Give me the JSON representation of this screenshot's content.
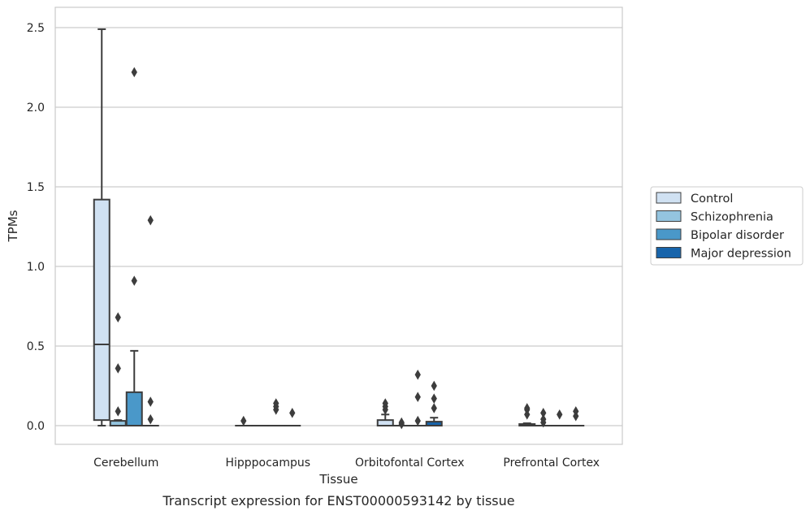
{
  "chart_data": {
    "type": "box",
    "title": "",
    "caption": "Transcript expression for ENST00000593142 by tissue",
    "xlabel": "Tissue",
    "ylabel": "TPMs",
    "ylim": [
      -0.12,
      2.62
    ],
    "yticks": [
      0.0,
      0.5,
      1.0,
      1.5,
      2.0,
      2.5
    ],
    "ytick_labels": [
      "0.0",
      "0.5",
      "1.0",
      "1.5",
      "2.0",
      "2.5"
    ],
    "grid": "horizontal",
    "legend_position": "right",
    "categories": [
      "Cerebellum",
      "Hipppocampus",
      "Orbitofontal Cortex",
      "Prefrontal Cortex"
    ],
    "series": [
      {
        "name": "Control",
        "color": "#d0e1f2",
        "boxes": [
          {
            "q1": 0.035,
            "median": 0.51,
            "q3": 1.42,
            "whisker_low": 0.0,
            "whisker_high": 2.49,
            "outliers": []
          },
          {
            "q1": 0.0,
            "median": 0.0,
            "q3": 0.0,
            "whisker_low": 0.0,
            "whisker_high": 0.0,
            "outliers": [
              0.03
            ]
          },
          {
            "q1": 0.0,
            "median": 0.0,
            "q3": 0.035,
            "whisker_low": 0.0,
            "whisker_high": 0.07,
            "outliers": [
              0.1,
              0.12,
              0.14
            ]
          },
          {
            "q1": 0.0,
            "median": 0.0,
            "q3": 0.01,
            "whisker_low": 0.0,
            "whisker_high": 0.015,
            "outliers": [
              0.07,
              0.1,
              0.11
            ]
          }
        ]
      },
      {
        "name": "Schizophrenia",
        "color": "#94c4df",
        "boxes": [
          {
            "q1": 0.0,
            "median": 0.0,
            "q3": 0.03,
            "whisker_low": 0.0,
            "whisker_high": 0.035,
            "outliers": [
              0.09,
              0.36,
              0.68
            ]
          },
          {
            "q1": 0.0,
            "median": 0.0,
            "q3": 0.0,
            "whisker_low": 0.0,
            "whisker_high": 0.0,
            "outliers": []
          },
          {
            "q1": 0.0,
            "median": 0.0,
            "q3": 0.0,
            "whisker_low": 0.0,
            "whisker_high": 0.0,
            "outliers": [
              0.01,
              0.02
            ]
          },
          {
            "q1": 0.0,
            "median": 0.0,
            "q3": 0.0,
            "whisker_low": 0.0,
            "whisker_high": 0.0,
            "outliers": [
              0.02,
              0.04,
              0.08
            ]
          }
        ]
      },
      {
        "name": "Bipolar disorder",
        "color": "#4a98c9",
        "boxes": [
          {
            "q1": 0.0,
            "median": 0.0,
            "q3": 0.21,
            "whisker_low": 0.0,
            "whisker_high": 0.47,
            "outliers": [
              0.91,
              2.22
            ]
          },
          {
            "q1": 0.0,
            "median": 0.0,
            "q3": 0.0,
            "whisker_low": 0.0,
            "whisker_high": 0.0,
            "outliers": [
              0.1,
              0.12,
              0.14
            ]
          },
          {
            "q1": 0.0,
            "median": 0.0,
            "q3": 0.0,
            "whisker_low": 0.0,
            "whisker_high": 0.0,
            "outliers": [
              0.03,
              0.18,
              0.32
            ]
          },
          {
            "q1": 0.0,
            "median": 0.0,
            "q3": 0.0,
            "whisker_low": 0.0,
            "whisker_high": 0.0,
            "outliers": [
              0.07
            ]
          }
        ]
      },
      {
        "name": "Major depression",
        "color": "#1764ab",
        "boxes": [
          {
            "q1": 0.0,
            "median": 0.0,
            "q3": 0.0,
            "whisker_low": 0.0,
            "whisker_high": 0.0,
            "outliers": [
              0.04,
              0.15,
              1.29
            ]
          },
          {
            "q1": 0.0,
            "median": 0.0,
            "q3": 0.0,
            "whisker_low": 0.0,
            "whisker_high": 0.0,
            "outliers": [
              0.08
            ]
          },
          {
            "q1": 0.0,
            "median": 0.0,
            "q3": 0.025,
            "whisker_low": 0.0,
            "whisker_high": 0.05,
            "outliers": [
              0.11,
              0.17,
              0.25
            ]
          },
          {
            "q1": 0.0,
            "median": 0.0,
            "q3": 0.0,
            "whisker_low": 0.0,
            "whisker_high": 0.0,
            "outliers": [
              0.06,
              0.09
            ]
          }
        ]
      }
    ]
  }
}
